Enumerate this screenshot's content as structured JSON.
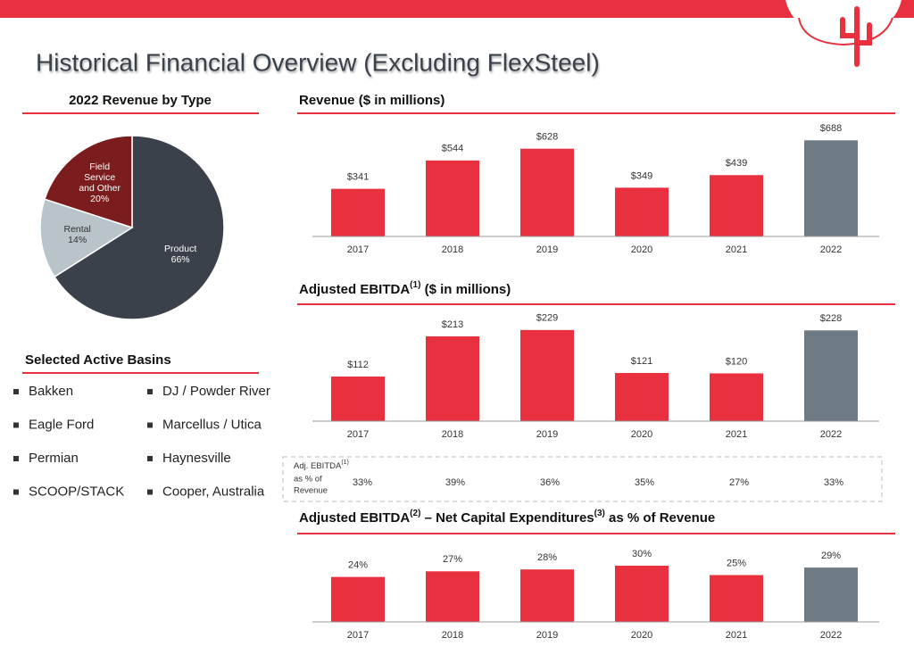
{
  "header": {
    "title": "Historical Financial Overview (Excluding FlexSteel)"
  },
  "basins": {
    "title": "Selected Active Basins",
    "items": [
      "Bakken",
      "DJ / Powder River",
      "Eagle Ford",
      "Marcellus / Utica",
      "Permian",
      "Haynesville",
      "SCOOP/STACK",
      "Cooper, Australia"
    ]
  },
  "ebitda_margin": {
    "label": "Adj. EBITDA",
    "note": "(1)",
    "label_lines": [
      "as % of",
      "Revenue"
    ],
    "values": [
      "33%",
      "39%",
      "36%",
      "35%",
      "27%",
      "33%"
    ]
  },
  "chart_data": [
    {
      "type": "pie",
      "title": "2022 Revenue by Type",
      "categories": [
        "Field Service and Other",
        "Rental",
        "Product"
      ],
      "values": [
        20,
        14,
        66
      ],
      "value_labels": [
        "20%",
        "14%",
        "66%"
      ],
      "colors": [
        "#7b1c1e",
        "#b8c3ca",
        "#3b414a"
      ]
    },
    {
      "type": "bar",
      "title": [
        "Revenue ($ in millions)"
      ],
      "categories": [
        "2017",
        "2018",
        "2019",
        "2020",
        "2021",
        "2022"
      ],
      "values": [
        341,
        544,
        628,
        349,
        439,
        688
      ],
      "value_labels": [
        "$341",
        "$544",
        "$628",
        "$349",
        "$439",
        "$688"
      ],
      "colors": [
        "#e8303e",
        "#e8303e",
        "#e8303e",
        "#e8303e",
        "#e8303e",
        "#6e7b85"
      ],
      "ylim": [
        0,
        760
      ]
    },
    {
      "type": "bar",
      "title": [
        "Adjusted EBITDA",
        "(1)",
        " ($ in millions)"
      ],
      "categories": [
        "2017",
        "2018",
        "2019",
        "2020",
        "2021",
        "2022"
      ],
      "values": [
        112,
        213,
        229,
        121,
        120,
        228
      ],
      "value_labels": [
        "$112",
        "$213",
        "$229",
        "$121",
        "$120",
        "$228"
      ],
      "colors": [
        "#e8303e",
        "#e8303e",
        "#e8303e",
        "#e8303e",
        "#e8303e",
        "#6e7b85"
      ],
      "ylim": [
        0,
        260
      ]
    },
    {
      "type": "bar",
      "title": [
        "Adjusted EBITDA",
        "(2)",
        " – Net Capital Expenditures",
        "(3)",
        " as % of Revenue"
      ],
      "categories": [
        "2017",
        "2018",
        "2019",
        "2020",
        "2021",
        "2022"
      ],
      "values": [
        24,
        27,
        28,
        30,
        25,
        29
      ],
      "value_labels": [
        "24%",
        "27%",
        "28%",
        "30%",
        "25%",
        "29%"
      ],
      "colors": [
        "#e8303e",
        "#e8303e",
        "#e8303e",
        "#e8303e",
        "#e8303e",
        "#6e7b85"
      ],
      "ylim": [
        0,
        40
      ]
    }
  ]
}
